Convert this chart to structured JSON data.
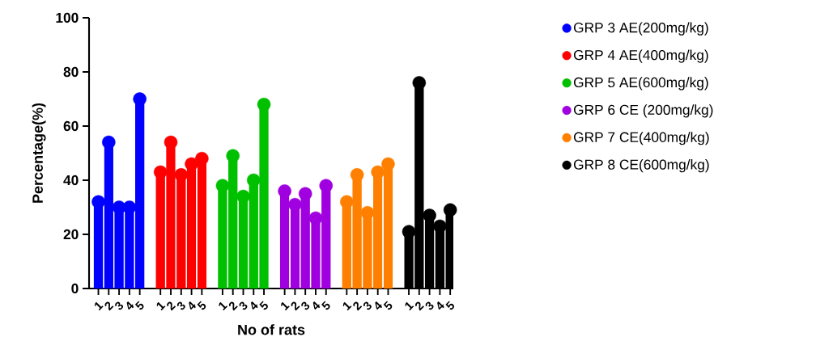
{
  "chart_data": {
    "type": "lollipop",
    "xlabel": "No of rats",
    "ylabel": "Percentage(%)",
    "categories": [
      "1",
      "2",
      "3",
      "4",
      "5",
      null,
      "1",
      "2",
      "3",
      "4",
      "5",
      null,
      "1",
      "2",
      "3",
      "4",
      "5",
      null,
      "1",
      "2",
      "3",
      "4",
      "5",
      null,
      "1",
      "2",
      "3",
      "4",
      "5",
      null,
      "1",
      "2",
      "3",
      "4",
      "5"
    ],
    "series": [
      {
        "name": "GRP 3 AE(200mg/kg)",
        "color": "#0000ff",
        "values": [
          32,
          54,
          30,
          30,
          70,
          null,
          null,
          null,
          null,
          null,
          null,
          null,
          null,
          null,
          null,
          null,
          null,
          null,
          null,
          null,
          null,
          null,
          null,
          null,
          null,
          null,
          null,
          null,
          null,
          null,
          null,
          null,
          null,
          null,
          null
        ]
      },
      {
        "name": "GRP 4 AE(400mg/kg)",
        "color": "#ff0000",
        "values": [
          null,
          null,
          null,
          null,
          null,
          null,
          43,
          54,
          42,
          46,
          48,
          null,
          null,
          null,
          null,
          null,
          null,
          null,
          null,
          null,
          null,
          null,
          null,
          null,
          null,
          null,
          null,
          null,
          null,
          null,
          null,
          null,
          null,
          null,
          null
        ]
      },
      {
        "name": "GRP 5 AE(600mg/kg)",
        "color": "#00c000",
        "values": [
          null,
          null,
          null,
          null,
          null,
          null,
          null,
          null,
          null,
          null,
          null,
          null,
          38,
          49,
          34,
          40,
          68,
          null,
          null,
          null,
          null,
          null,
          null,
          null,
          null,
          null,
          null,
          null,
          null,
          null,
          null,
          null,
          null,
          null,
          null
        ]
      },
      {
        "name": "GRP 6 CE (200mg/kg)",
        "color": "#a000e0",
        "values": [
          null,
          null,
          null,
          null,
          null,
          null,
          null,
          null,
          null,
          null,
          null,
          null,
          null,
          null,
          null,
          null,
          null,
          null,
          36,
          31,
          35,
          26,
          38,
          null,
          null,
          null,
          null,
          null,
          null,
          null,
          null,
          null,
          null,
          null,
          null
        ]
      },
      {
        "name": "GRP 7 CE(400mg/kg)",
        "color": "#ff8000",
        "values": [
          null,
          null,
          null,
          null,
          null,
          null,
          null,
          null,
          null,
          null,
          null,
          null,
          null,
          null,
          null,
          null,
          null,
          null,
          null,
          null,
          null,
          null,
          null,
          null,
          32,
          42,
          28,
          43,
          46,
          null,
          null,
          null,
          null,
          null,
          null
        ]
      },
      {
        "name": "GRP 8 CE(600mg/kg)",
        "color": "#000000",
        "values": [
          null,
          null,
          null,
          null,
          null,
          null,
          null,
          null,
          null,
          null,
          null,
          null,
          null,
          null,
          null,
          null,
          null,
          null,
          null,
          null,
          null,
          null,
          null,
          null,
          null,
          null,
          null,
          null,
          null,
          null,
          21,
          76,
          27,
          23,
          29
        ]
      }
    ],
    "ylim": [
      0,
      100
    ],
    "yticks": [
      0,
      20,
      40,
      60,
      80,
      100
    ],
    "legend": "right",
    "marker": "circle"
  }
}
